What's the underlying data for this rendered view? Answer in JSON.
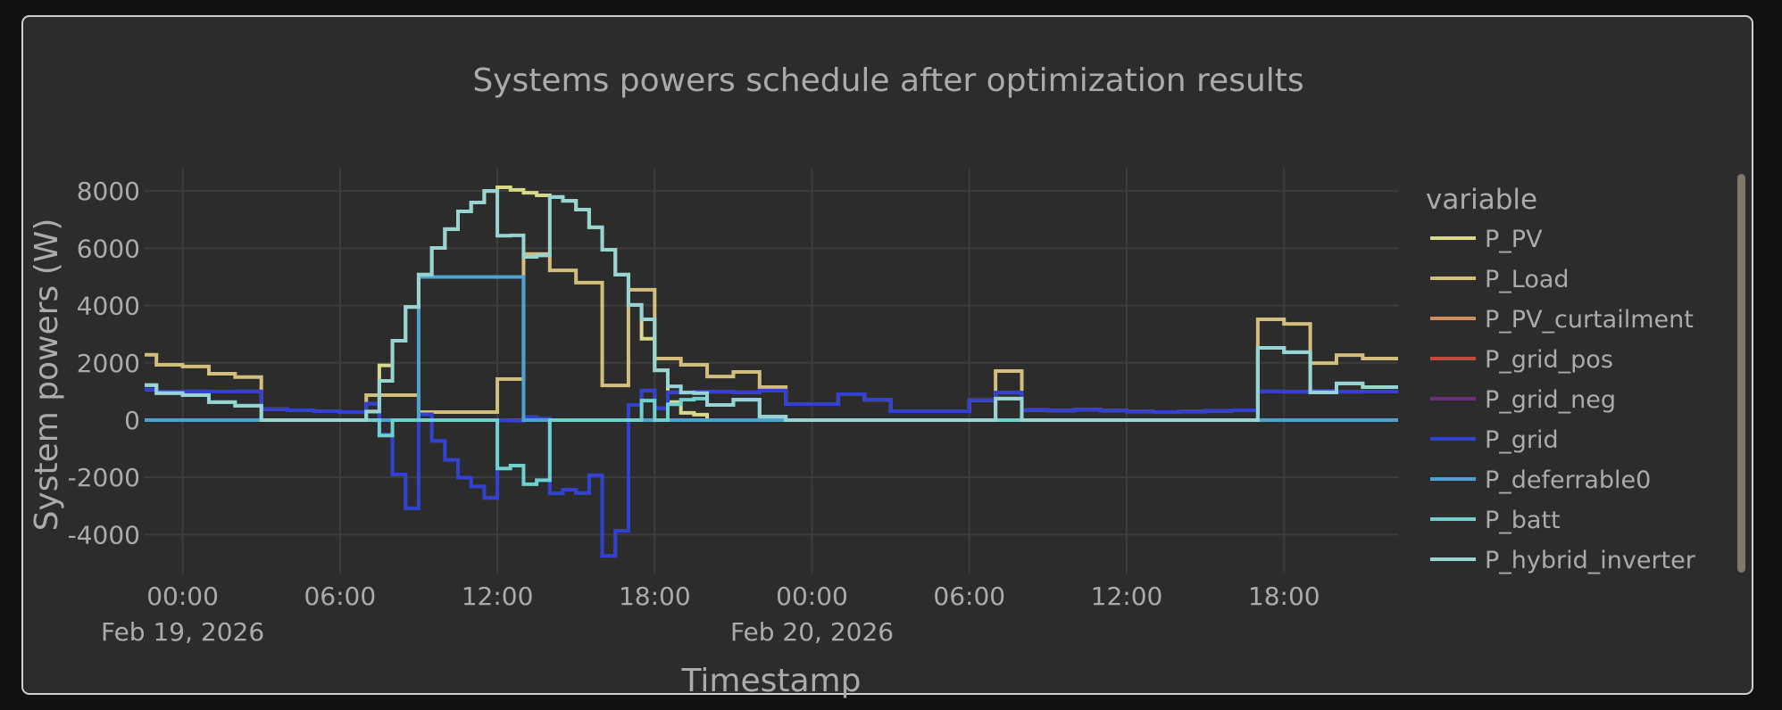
{
  "chart_data": {
    "type": "line",
    "line_shape": "hv",
    "title": "Systems powers schedule after optimization results",
    "xlabel": "Timestamp",
    "ylabel": "System powers (W)",
    "legend_title": "variable",
    "legend_position": "right",
    "grid": true,
    "x_start": "2026-02-18 22:30",
    "step_minutes": 30,
    "xlim": [
      "2026-02-18 22:33",
      "2026-02-20 22:21"
    ],
    "ylim": [
      -5360,
      8815
    ],
    "x_ticks": [
      {
        "t": "2026-02-19 00:00",
        "label": "00:00",
        "date": "Feb 19, 2026"
      },
      {
        "t": "2026-02-19 06:00",
        "label": "06:00",
        "date": ""
      },
      {
        "t": "2026-02-19 12:00",
        "label": "12:00",
        "date": ""
      },
      {
        "t": "2026-02-19 18:00",
        "label": "18:00",
        "date": ""
      },
      {
        "t": "2026-02-20 00:00",
        "label": "00:00",
        "date": "Feb 20, 2026"
      },
      {
        "t": "2026-02-20 06:00",
        "label": "06:00",
        "date": ""
      },
      {
        "t": "2026-02-20 12:00",
        "label": "12:00",
        "date": ""
      },
      {
        "t": "2026-02-20 18:00",
        "label": "18:00",
        "date": ""
      }
    ],
    "y_ticks": [
      -4000,
      -2000,
      0,
      2000,
      4000,
      6000,
      8000
    ],
    "series": [
      {
        "name": "P_PV",
        "color": "#d9d98a",
        "values": [
          0,
          0,
          0,
          0,
          0,
          0,
          0,
          0,
          0,
          0,
          0,
          0,
          0,
          0,
          0,
          0,
          0,
          300,
          1910,
          2770,
          3950,
          5080,
          6010,
          6670,
          7290,
          7600,
          8000,
          8130,
          8040,
          7940,
          7850,
          7790,
          7660,
          7350,
          6730,
          5950,
          5080,
          4020,
          2840,
          1740,
          630,
          250,
          190,
          0,
          0,
          0,
          0,
          0,
          0,
          0,
          0,
          0,
          0,
          0,
          0,
          0,
          0,
          0,
          0,
          0,
          0,
          0,
          0,
          0,
          0,
          750,
          750,
          0,
          0,
          0,
          0,
          0,
          0,
          0,
          0,
          0,
          0,
          0,
          0,
          0,
          0,
          0,
          0,
          0,
          0,
          0,
          0,
          0,
          0,
          0,
          0,
          0,
          0,
          0,
          0,
          0
        ]
      },
      {
        "name": "P_Load",
        "color": "#d4be7c",
        "values": [
          2280,
          1930,
          1930,
          1870,
          1870,
          1620,
          1620,
          1500,
          1500,
          375,
          375,
          340,
          340,
          310,
          310,
          280,
          280,
          870,
          870,
          870,
          870,
          280,
          280,
          280,
          280,
          280,
          280,
          1430,
          1430,
          5800,
          5800,
          5230,
          5230,
          4800,
          4800,
          1210,
          1210,
          4550,
          4550,
          2150,
          2150,
          1930,
          1930,
          1520,
          1520,
          1680,
          1680,
          1150,
          1150,
          560,
          560,
          560,
          560,
          900,
          900,
          710,
          710,
          310,
          310,
          310,
          310,
          310,
          310,
          690,
          690,
          1710,
          1710,
          350,
          350,
          330,
          330,
          360,
          360,
          330,
          330,
          300,
          300,
          280,
          280,
          300,
          300,
          320,
          320,
          340,
          340,
          3520,
          3520,
          3360,
          3360,
          1990,
          1990,
          2270,
          2270,
          2150,
          2150,
          2150
        ]
      },
      {
        "name": "P_PV_curtailment",
        "color": "#d18f5e",
        "values": [
          0,
          0,
          0,
          0,
          0,
          0,
          0,
          0,
          0,
          0,
          0,
          0,
          0,
          0,
          0,
          0,
          0,
          0,
          0,
          0,
          0,
          0,
          0,
          0,
          0,
          0,
          0,
          0,
          0,
          0,
          0,
          0,
          0,
          0,
          0,
          0,
          0,
          0,
          0,
          0,
          0,
          0,
          0,
          0,
          0,
          0,
          0,
          0,
          0,
          0,
          0,
          0,
          0,
          0,
          0,
          0,
          0,
          0,
          0,
          0,
          0,
          0,
          0,
          0,
          0,
          0,
          0,
          0,
          0,
          0,
          0,
          0,
          0,
          0,
          0,
          0,
          0,
          0,
          0,
          0,
          0,
          0,
          0,
          0,
          0,
          0,
          0,
          0,
          0,
          0,
          0,
          0,
          0,
          0,
          0,
          0
        ]
      },
      {
        "name": "P_grid_pos",
        "color": "#c64a3b",
        "values": [
          1060,
          990,
          990,
          1000,
          1000,
          995,
          995,
          1000,
          1000,
          375,
          375,
          340,
          340,
          310,
          310,
          280,
          280,
          570,
          0,
          0,
          0,
          200,
          0,
          0,
          0,
          0,
          0,
          0,
          0,
          100,
          50,
          0,
          0,
          0,
          0,
          0,
          0,
          530,
          1030,
          410,
          970,
          970,
          990,
          990,
          990,
          970,
          970,
          1030,
          1030,
          560,
          560,
          560,
          560,
          900,
          900,
          710,
          710,
          310,
          310,
          310,
          310,
          310,
          310,
          690,
          690,
          960,
          960,
          350,
          350,
          330,
          330,
          360,
          360,
          330,
          330,
          300,
          300,
          280,
          280,
          300,
          300,
          320,
          320,
          340,
          340,
          1000,
          1000,
          990,
          990,
          1020,
          1020,
          990,
          990,
          1000,
          1000,
          1000
        ]
      },
      {
        "name": "P_grid_neg",
        "color": "#6c2d79",
        "values": [
          0,
          0,
          0,
          0,
          0,
          0,
          0,
          0,
          0,
          0,
          0,
          0,
          0,
          0,
          0,
          0,
          0,
          0,
          -500,
          -1900,
          -3080,
          0,
          -730,
          -1390,
          -2010,
          -2320,
          -2720,
          -10,
          -20,
          0,
          0,
          -2560,
          -2430,
          -2550,
          -1930,
          -4740,
          -3870,
          0,
          0,
          0,
          0,
          0,
          0,
          0,
          0,
          0,
          0,
          0,
          0,
          0,
          0,
          0,
          0,
          0,
          0,
          0,
          0,
          0,
          0,
          0,
          0,
          0,
          0,
          0,
          0,
          0,
          0,
          0,
          0,
          0,
          0,
          0,
          0,
          0,
          0,
          0,
          0,
          0,
          0,
          0,
          0,
          0,
          0,
          0,
          0,
          0,
          0,
          0,
          0,
          0,
          0,
          0,
          0,
          0,
          0,
          0,
          0
        ]
      },
      {
        "name": "P_grid",
        "color": "#3141d2",
        "values": [
          1060,
          990,
          990,
          1000,
          1000,
          995,
          995,
          1000,
          1000,
          375,
          375,
          340,
          340,
          310,
          310,
          280,
          280,
          570,
          -500,
          -1900,
          -3080,
          200,
          -730,
          -1390,
          -2010,
          -2320,
          -2720,
          -10,
          -20,
          100,
          50,
          -2560,
          -2430,
          -2550,
          -1930,
          -4740,
          -3870,
          530,
          1030,
          410,
          970,
          970,
          990,
          990,
          990,
          970,
          970,
          1030,
          1030,
          560,
          560,
          560,
          560,
          900,
          900,
          710,
          710,
          310,
          310,
          310,
          310,
          310,
          310,
          690,
          690,
          960,
          960,
          350,
          350,
          330,
          330,
          360,
          360,
          330,
          330,
          300,
          300,
          280,
          280,
          300,
          300,
          320,
          320,
          340,
          340,
          1000,
          1000,
          990,
          990,
          1020,
          1020,
          990,
          990,
          1000,
          1000,
          1000
        ]
      },
      {
        "name": "P_deferrable0",
        "color": "#4ca2d0",
        "values": [
          0,
          0,
          0,
          0,
          0,
          0,
          0,
          0,
          0,
          0,
          0,
          0,
          0,
          0,
          0,
          0,
          0,
          0,
          0,
          0,
          0,
          5000,
          5000,
          5000,
          5000,
          5000,
          5000,
          5000,
          5000,
          0,
          0,
          0,
          0,
          0,
          0,
          0,
          0,
          0,
          0,
          0,
          0,
          0,
          0,
          0,
          0,
          0,
          0,
          0,
          0,
          0,
          0,
          0,
          0,
          0,
          0,
          0,
          0,
          0,
          0,
          0,
          0,
          0,
          0,
          0,
          0,
          0,
          0,
          0,
          0,
          0,
          0,
          0,
          0,
          0,
          0,
          0,
          0,
          0,
          0,
          0,
          0,
          0,
          0,
          0,
          0,
          0,
          0,
          0,
          0,
          0,
          0,
          0,
          0,
          0,
          0,
          0
        ]
      },
      {
        "name": "P_batt",
        "color": "#6fd0d0",
        "values": [
          1220,
          940,
          940,
          870,
          870,
          625,
          625,
          500,
          500,
          0,
          0,
          0,
          0,
          0,
          0,
          0,
          0,
          0,
          -540,
          0,
          0,
          0,
          0,
          0,
          0,
          0,
          0,
          -1690,
          -1590,
          -2240,
          -2100,
          0,
          0,
          0,
          0,
          0,
          0,
          0,
          680,
          0,
          550,
          710,
          750,
          530,
          530,
          710,
          710,
          120,
          120,
          0,
          0,
          0,
          0,
          0,
          0,
          0,
          0,
          0,
          0,
          0,
          0,
          0,
          0,
          0,
          0,
          0,
          0,
          0,
          0,
          0,
          0,
          0,
          0,
          0,
          0,
          0,
          0,
          0,
          0,
          0,
          0,
          0,
          0,
          0,
          0,
          2520,
          2520,
          2370,
          2370,
          970,
          970,
          1280,
          1280,
          1150,
          1150,
          1150
        ]
      },
      {
        "name": "P_hybrid_inverter",
        "color": "#97d5d5",
        "values": [
          1220,
          940,
          940,
          870,
          870,
          625,
          625,
          500,
          500,
          0,
          0,
          0,
          0,
          0,
          0,
          0,
          0,
          300,
          1370,
          2770,
          3950,
          5080,
          6010,
          6670,
          7290,
          7600,
          8000,
          6440,
          6450,
          5700,
          5750,
          7790,
          7660,
          7350,
          6730,
          5950,
          5080,
          4020,
          3520,
          1740,
          1180,
          960,
          940,
          530,
          530,
          710,
          710,
          120,
          120,
          0,
          0,
          0,
          0,
          0,
          0,
          0,
          0,
          0,
          0,
          0,
          0,
          0,
          0,
          0,
          0,
          750,
          750,
          0,
          0,
          0,
          0,
          0,
          0,
          0,
          0,
          0,
          0,
          0,
          0,
          0,
          0,
          0,
          0,
          0,
          0,
          2520,
          2520,
          2370,
          2370,
          970,
          970,
          1280,
          1280,
          1150,
          1150,
          1150
        ]
      }
    ]
  }
}
